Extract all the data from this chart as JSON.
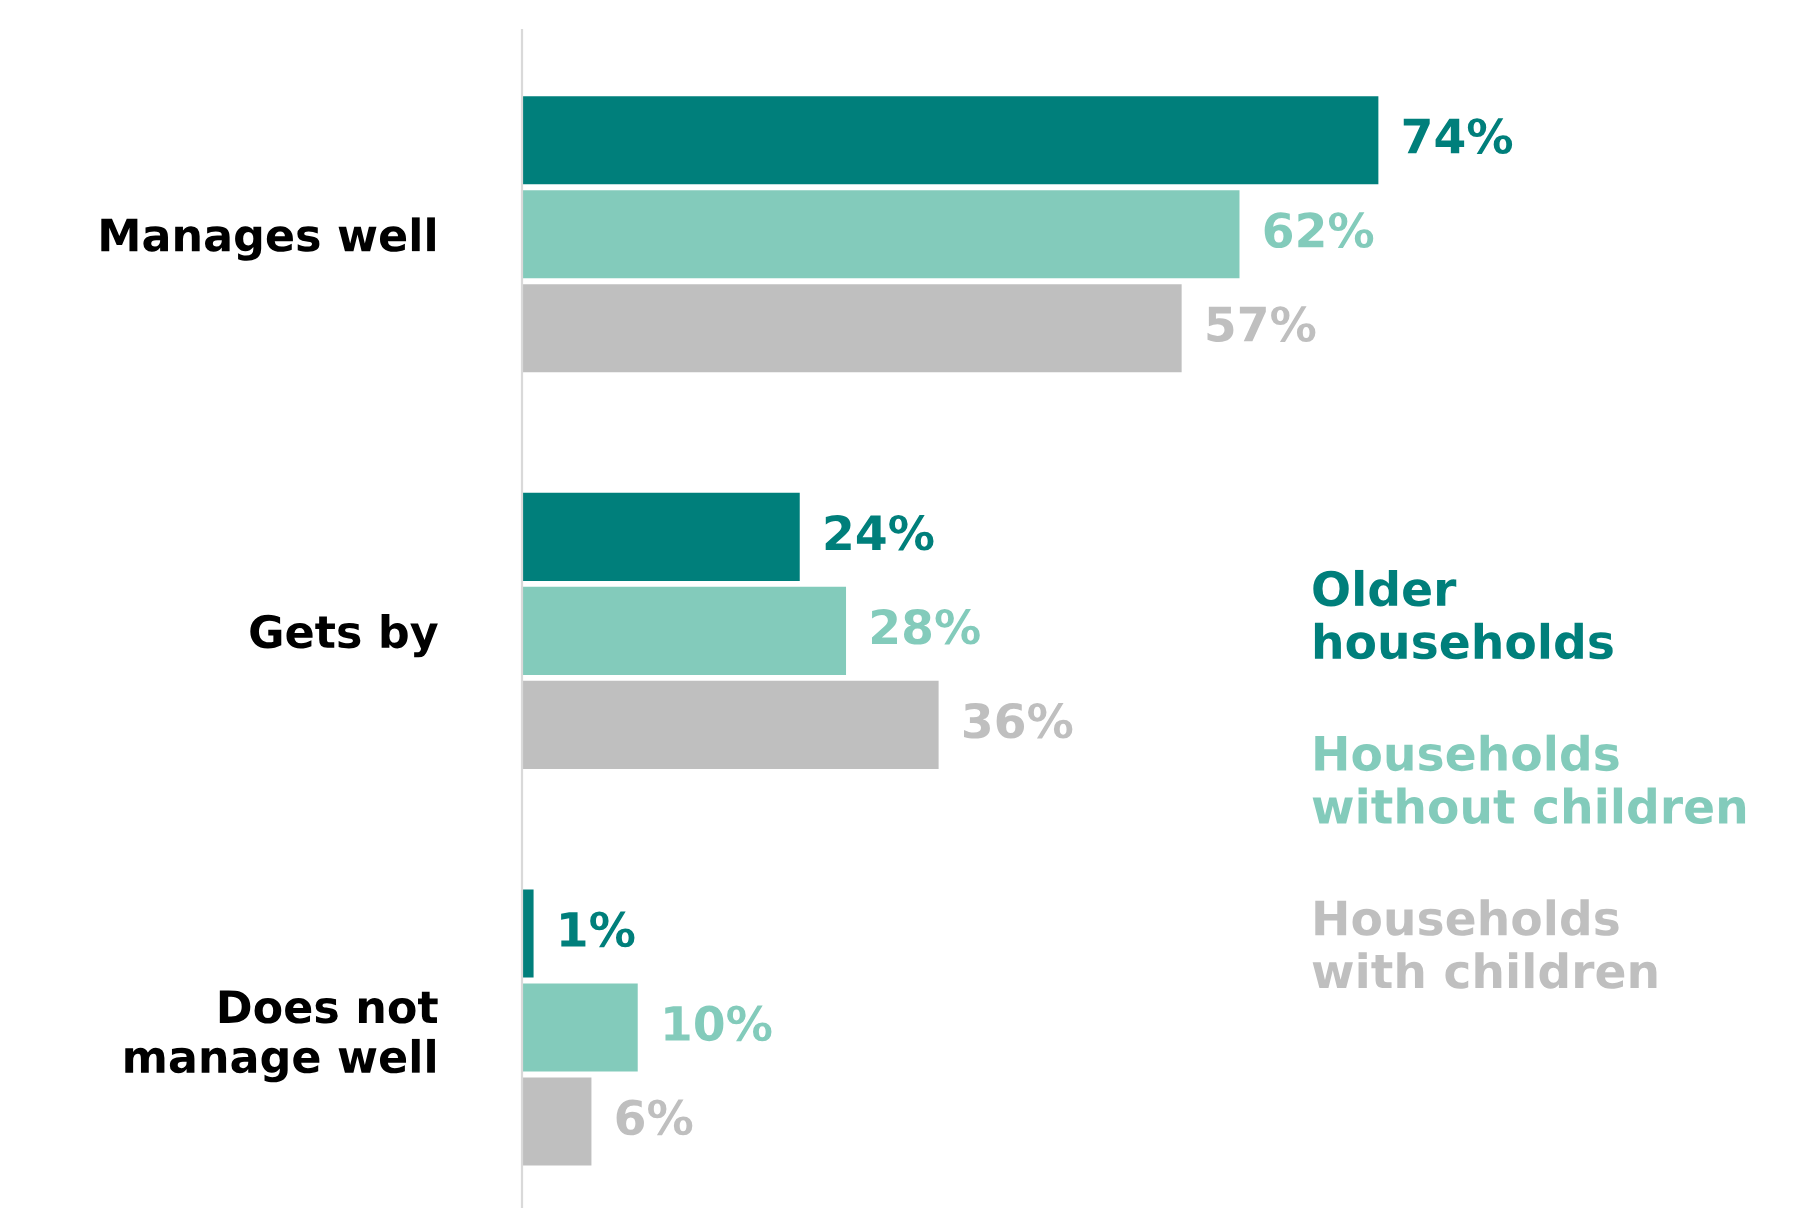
{
  "chart_data": {
    "type": "bar",
    "orientation": "horizontal",
    "categories": [
      "Manages well",
      "Gets by",
      "Does not\nmanage well"
    ],
    "series": [
      {
        "name": "Older\nhouseholds",
        "color": "#007f7b",
        "values": [
          74,
          24,
          1
        ],
        "value_labels": [
          "74%",
          "24%",
          "1%"
        ]
      },
      {
        "name": "Households\nwithout children",
        "color": "#83cbbb",
        "values": [
          62,
          28,
          10
        ],
        "value_labels": [
          "62%",
          "28%",
          "10%"
        ]
      },
      {
        "name": "Households\nwith children",
        "color": "#bfbfbf",
        "values": [
          57,
          36,
          6
        ],
        "value_labels": [
          "57%",
          "36%",
          "6%"
        ]
      }
    ],
    "tick_labels": "y",
    "legend": "right"
  }
}
